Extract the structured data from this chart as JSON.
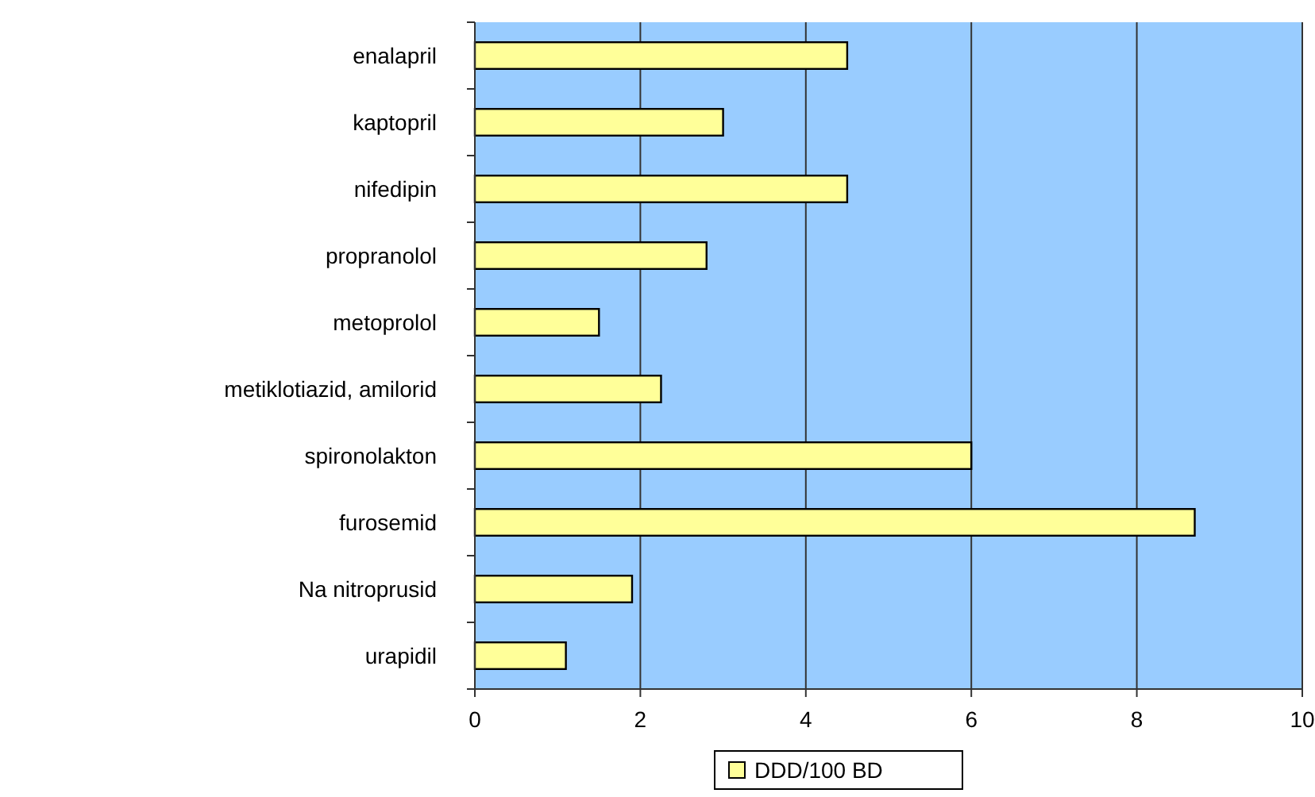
{
  "chart_data": {
    "type": "bar",
    "orientation": "horizontal",
    "categories": [
      "enalapril",
      "kaptopril",
      "nifedipin",
      "propranolol",
      "metoprolol",
      "metiklotiazid, amilorid",
      "spironolakton",
      "furosemid",
      "Na nitroprusid",
      "urapidil"
    ],
    "series": [
      {
        "name": "DDD/100 BD",
        "color": "#ffff99",
        "values": [
          4.5,
          3.0,
          4.5,
          2.8,
          1.5,
          2.25,
          6.0,
          8.7,
          1.9,
          1.1
        ]
      }
    ],
    "xlim": [
      0,
      10
    ],
    "xticks": [
      0,
      2,
      4,
      6,
      8,
      10
    ],
    "grid": "x",
    "legend": "bottom"
  }
}
